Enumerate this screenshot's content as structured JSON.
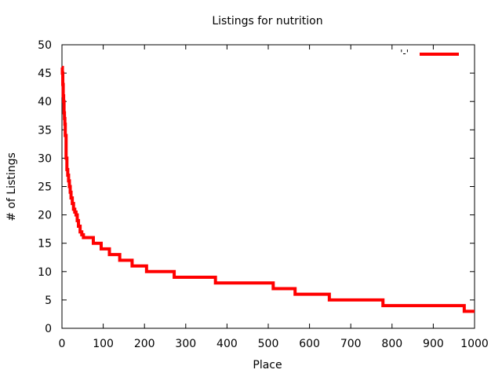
{
  "chart_data": {
    "type": "line",
    "title": "Listings for nutrition",
    "xlabel": "Place",
    "ylabel": "# of Listings",
    "xlim": [
      0,
      1000
    ],
    "ylim": [
      0,
      50
    ],
    "xticks": [
      "0",
      "100",
      "200",
      "300",
      "400",
      "500",
      "600",
      "700",
      "800",
      "900",
      "1000"
    ],
    "yticks": [
      "0",
      "5",
      "10",
      "15",
      "20",
      "25",
      "30",
      "35",
      "40",
      "45",
      "50"
    ],
    "grid": false,
    "legend_position": "top-right",
    "step": true,
    "series": [
      {
        "name": "'-'",
        "color": "#ff0000",
        "x": [
          0,
          1,
          2,
          3,
          4,
          5,
          6,
          7,
          8,
          10,
          12,
          14,
          16,
          18,
          20,
          22,
          25,
          28,
          31,
          34,
          37,
          40,
          44,
          48,
          52,
          56,
          60,
          65,
          76,
          95,
          115,
          140,
          170,
          205,
          272,
          372,
          512,
          565,
          648,
          778,
          975,
          1000
        ],
        "y": [
          46,
          45,
          43,
          41,
          40,
          38,
          37,
          36,
          34,
          30,
          28,
          27,
          26,
          25,
          24,
          23,
          22,
          21,
          20.5,
          20,
          19,
          18,
          17,
          16.5,
          16,
          16,
          16,
          16,
          15,
          14,
          13,
          12,
          11,
          10,
          9,
          8,
          7,
          6,
          5,
          4,
          3,
          3
        ]
      }
    ]
  }
}
